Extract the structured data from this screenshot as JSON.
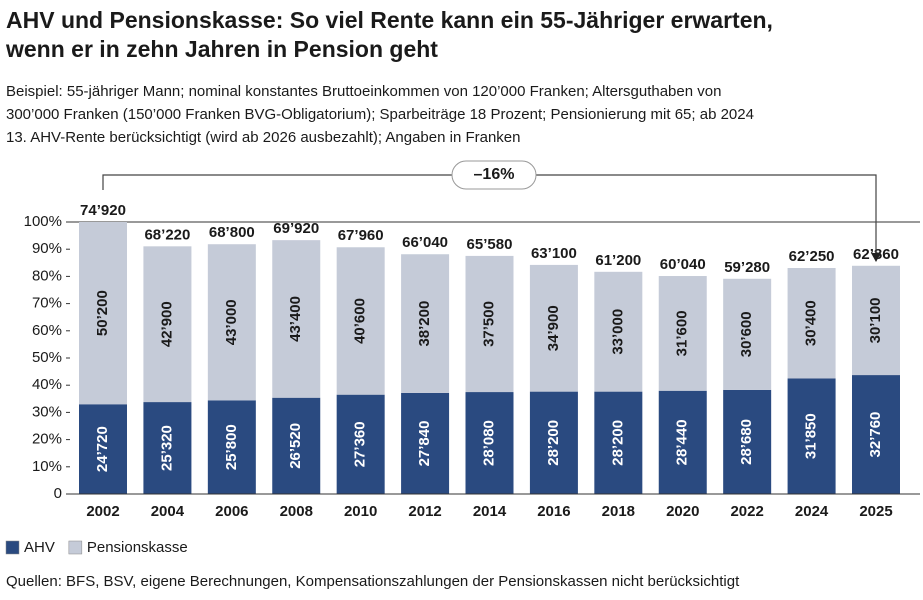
{
  "chart_data": {
    "type": "stacked-bar",
    "title": [
      "AHV und Pensionskasse: So viel Rente kann ein 55-Jähriger erwarten,",
      "wenn er in zehn Jahren in Pension geht"
    ],
    "subtitle": [
      "Beispiel: 55-jähriger Mann; nominal konstantes Bruttoeinkommen von 120’000 Franken; Altersguthaben von",
      "300’000 Franken (150’000 Franken BVG-Obligatorium); Sparbeiträge 18 Prozent; Pensionierung mit 65; ab 2024",
      "13. AHV-Rente berücksichtigt (wird ab 2026 ausbezahlt); Angaben in Franken"
    ],
    "categories": [
      "2002",
      "2004",
      "2006",
      "2008",
      "2010",
      "2012",
      "2014",
      "2016",
      "2018",
      "2020",
      "2022",
      "2024",
      "2025"
    ],
    "series": [
      {
        "name": "AHV",
        "color": "#2a4a80",
        "label_color": "#ffffff",
        "values": [
          24720,
          25320,
          25800,
          26520,
          27360,
          27840,
          28080,
          28200,
          28200,
          28440,
          28680,
          31850,
          32760
        ],
        "value_labels": [
          "24’720",
          "25’320",
          "25’800",
          "26’520",
          "27’360",
          "27’840",
          "28’080",
          "28’200",
          "28’200",
          "28’440",
          "28’680",
          "31’850",
          "32’760"
        ]
      },
      {
        "name": "Pensionskasse",
        "color": "#c5cbd8",
        "label_color": "#1a1a1a",
        "values": [
          50200,
          42900,
          43000,
          43400,
          40600,
          38200,
          37500,
          34900,
          33000,
          31600,
          30600,
          30400,
          30100
        ],
        "value_labels": [
          "50’200",
          "42’900",
          "43’000",
          "43’400",
          "40’600",
          "38’200",
          "37’500",
          "34’900",
          "33’000",
          "31’600",
          "30’600",
          "30’400",
          "30’100"
        ]
      }
    ],
    "totals": [
      74920,
      68220,
      68800,
      69920,
      67960,
      66040,
      65580,
      63100,
      61200,
      60040,
      59280,
      62250,
      62860
    ],
    "total_labels": [
      "74’920",
      "68’220",
      "68’800",
      "69’920",
      "67’960",
      "66’040",
      "65’580",
      "63’100",
      "61’200",
      "60’040",
      "59’280",
      "62’250",
      "62’860"
    ],
    "ylim": [
      0,
      74920
    ],
    "yticks": [
      {
        "value": 0,
        "label": "0"
      },
      {
        "value": 7492,
        "label": "10%"
      },
      {
        "value": 14984,
        "label": "20%"
      },
      {
        "value": 22476,
        "label": "30%"
      },
      {
        "value": 29968,
        "label": "40%"
      },
      {
        "value": 37460,
        "label": "50%"
      },
      {
        "value": 44952,
        "label": "60%"
      },
      {
        "value": 52444,
        "label": "70%"
      },
      {
        "value": 59936,
        "label": "80%"
      },
      {
        "value": 67428,
        "label": "90%"
      },
      {
        "value": 74920,
        "label": "100%"
      }
    ],
    "grid": false,
    "annotation": "–16%",
    "source": "Quellen: BFS, BSV, eigene Berechnungen, Kompensationszahlungen der Pensionskassen nicht berücksichtigt"
  }
}
